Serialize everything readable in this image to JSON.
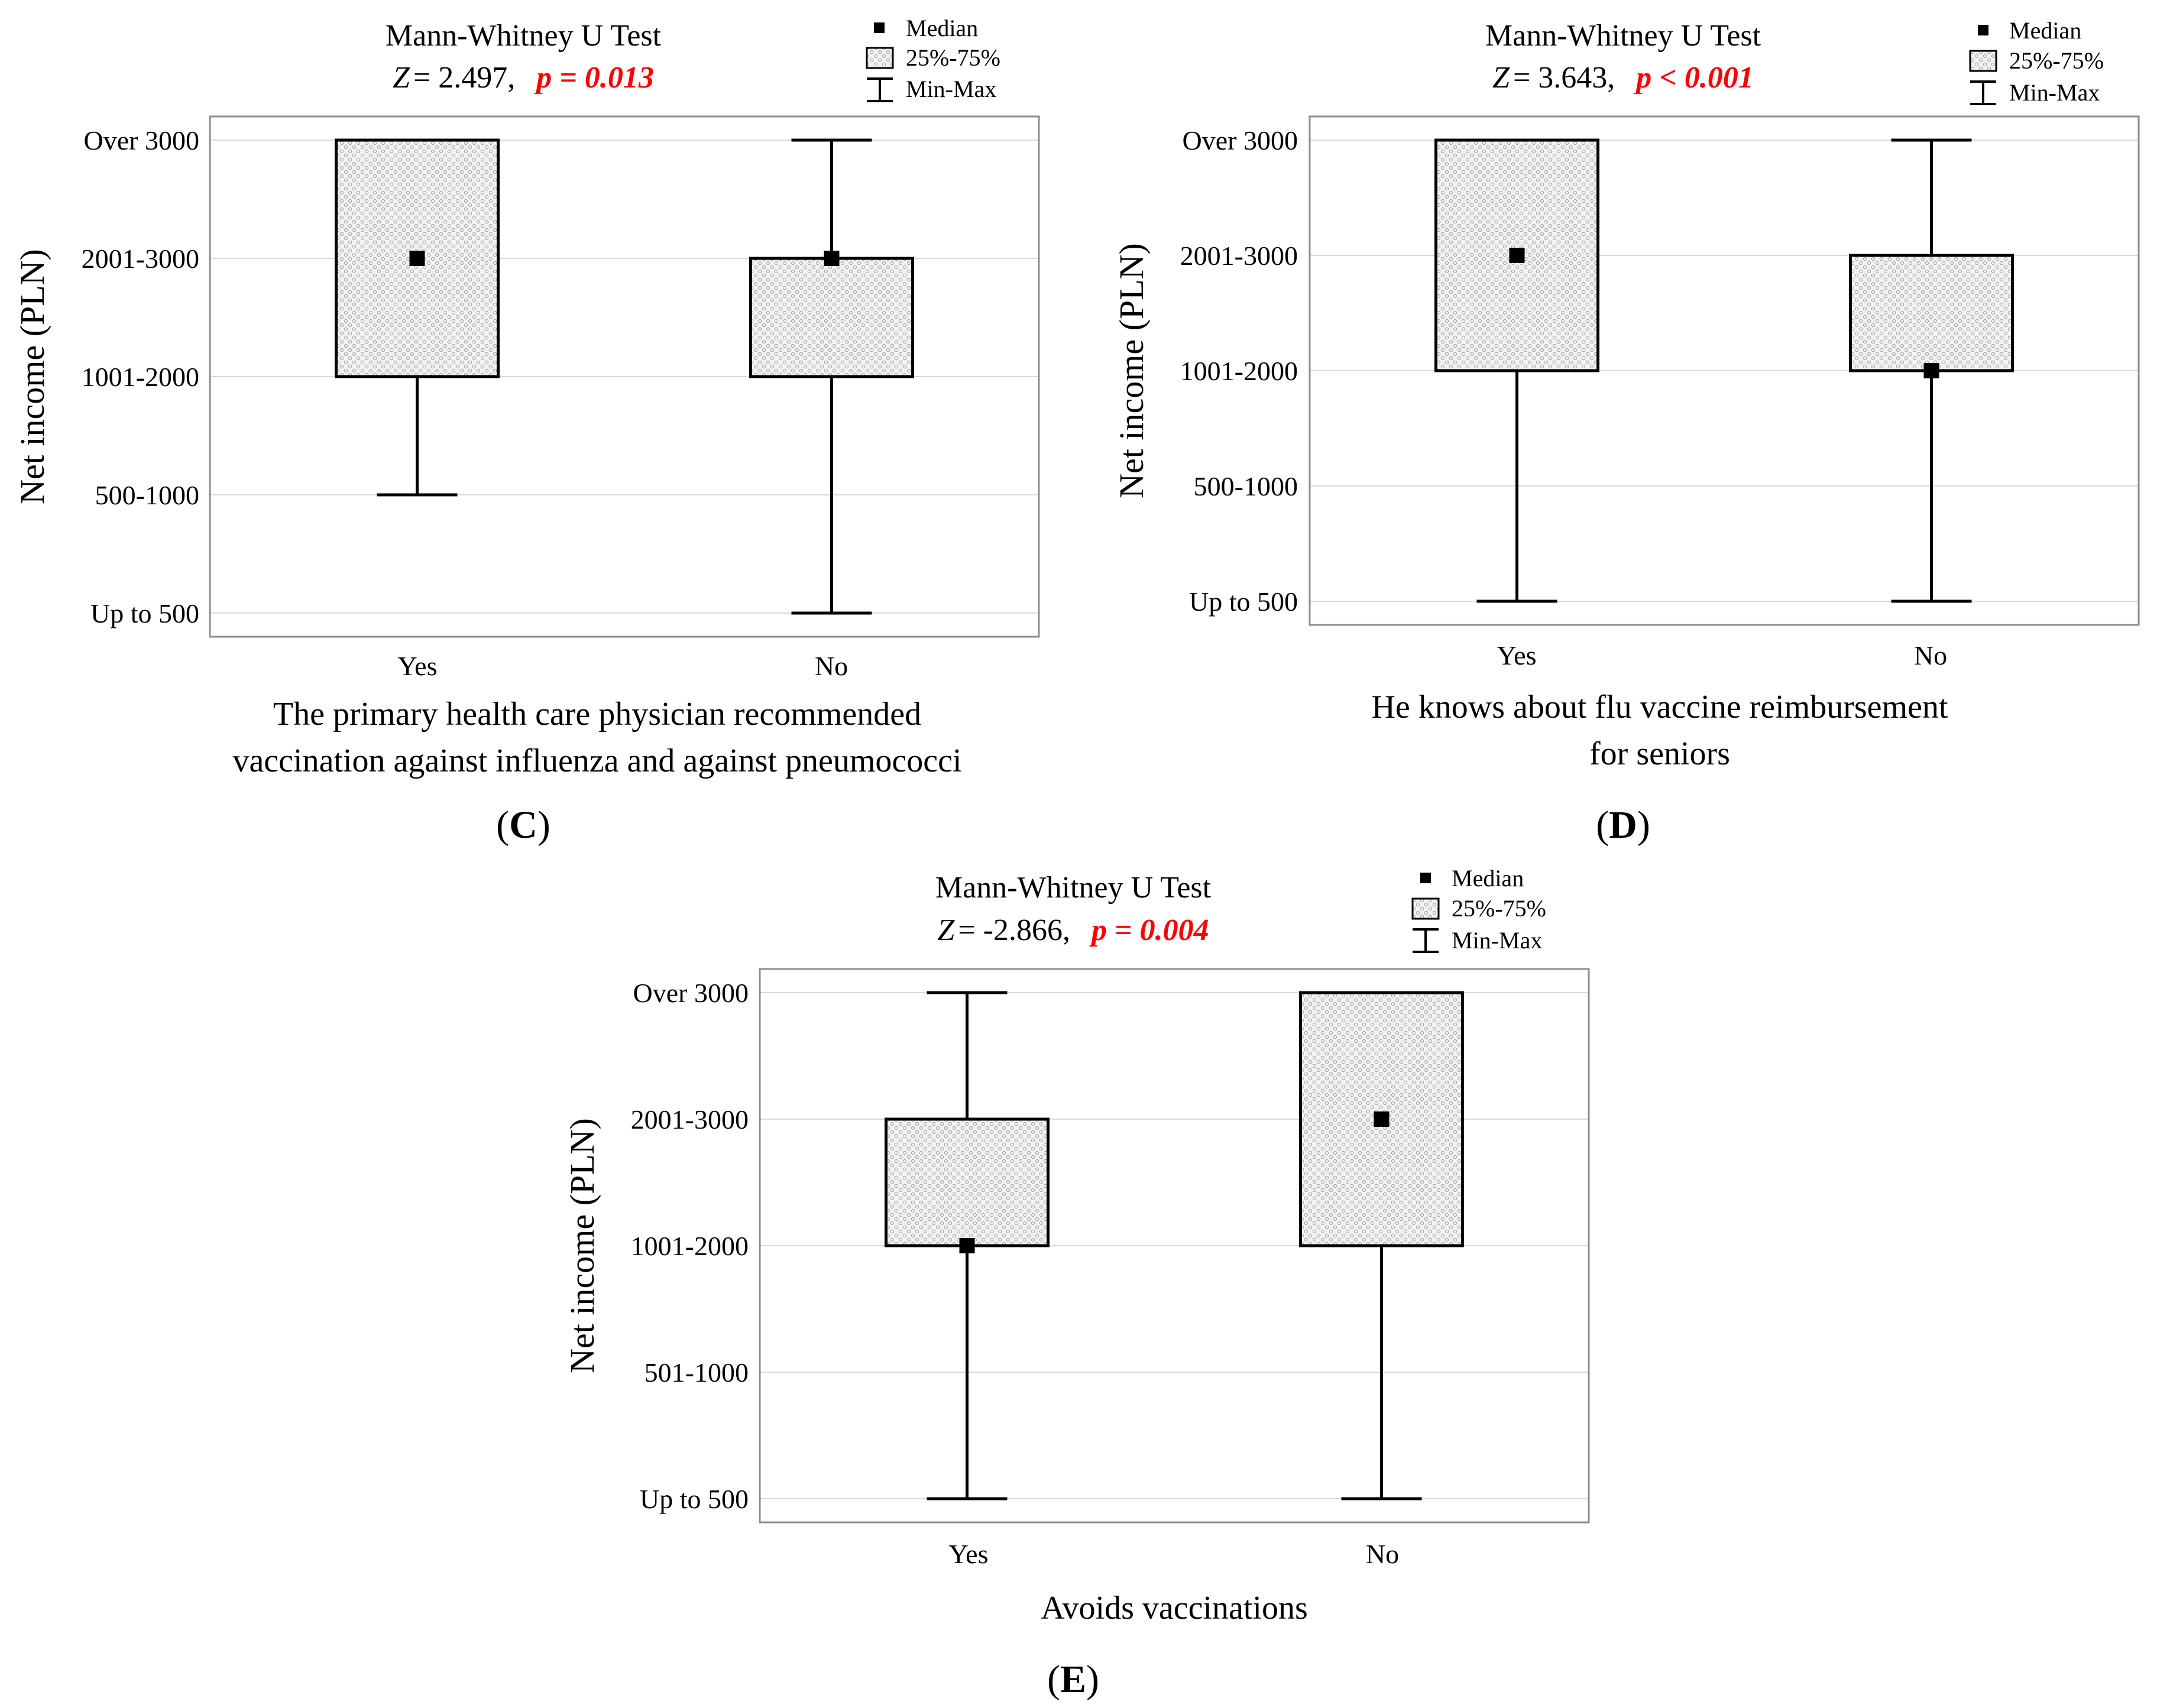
{
  "chart_data": [
    {
      "type": "box",
      "panel": "C",
      "title": "Mann-Whitney U Test",
      "stat_symbol": "Z",
      "stat_value": "= 2.497,",
      "p_label": "p = 0.013",
      "ylabel": "Net income (PLN)",
      "xlabel_lines": [
        "The primary health care physician recommended",
        "vaccination against influenza and against pneumococci"
      ],
      "y_categories": [
        "Up to 500",
        "500-1000",
        "1001-2000",
        "2001-3000",
        "Over 3000"
      ],
      "categories": [
        "Yes",
        "No"
      ],
      "boxes": [
        {
          "name": "Yes",
          "min": 1,
          "q1": 2,
          "median": 3,
          "q3": 4,
          "max": 4
        },
        {
          "name": "No",
          "min": 0,
          "q1": 2,
          "median": 3,
          "q3": 3,
          "max": 4
        }
      ],
      "legend": {
        "median": "Median",
        "iqr": "25%-75%",
        "range": "Min-Max"
      }
    },
    {
      "type": "box",
      "panel": "D",
      "title": "Mann-Whitney U Test",
      "stat_symbol": "Z",
      "stat_value": "= 3.643,",
      "p_label": "p < 0.001",
      "ylabel": "Net income (PLN)",
      "xlabel_lines": [
        "He knows about flu vaccine reimbursement",
        "for seniors"
      ],
      "y_categories": [
        "Up to 500",
        "500-1000",
        "1001-2000",
        "2001-3000",
        "Over 3000"
      ],
      "categories": [
        "Yes",
        "No"
      ],
      "boxes": [
        {
          "name": "Yes",
          "min": 0,
          "q1": 2,
          "median": 3,
          "q3": 4,
          "max": 4
        },
        {
          "name": "No",
          "min": 0,
          "q1": 2,
          "median": 2,
          "q3": 3,
          "max": 4
        }
      ],
      "legend": {
        "median": "Median",
        "iqr": "25%-75%",
        "range": "Min-Max"
      }
    },
    {
      "type": "box",
      "panel": "E",
      "title": "Mann-Whitney U Test",
      "stat_symbol": "Z",
      "stat_value": "= -2.866,",
      "p_label": "p = 0.004",
      "ylabel": "Net income (PLN)",
      "xlabel_lines": [
        "Avoids vaccinations"
      ],
      "y_categories": [
        "Up to 500",
        "501-1000",
        "1001-2000",
        "2001-3000",
        "Over 3000"
      ],
      "categories": [
        "Yes",
        "No"
      ],
      "boxes": [
        {
          "name": "Yes",
          "min": 0,
          "q1": 2,
          "median": 2,
          "q3": 3,
          "max": 4
        },
        {
          "name": "No",
          "min": 0,
          "q1": 2,
          "median": 3,
          "q3": 4,
          "max": 4
        }
      ],
      "legend": {
        "median": "Median",
        "iqr": "25%-75%",
        "range": "Min-Max"
      }
    }
  ],
  "panel_tags": {
    "c": "C",
    "d": "D",
    "e": "E"
  }
}
